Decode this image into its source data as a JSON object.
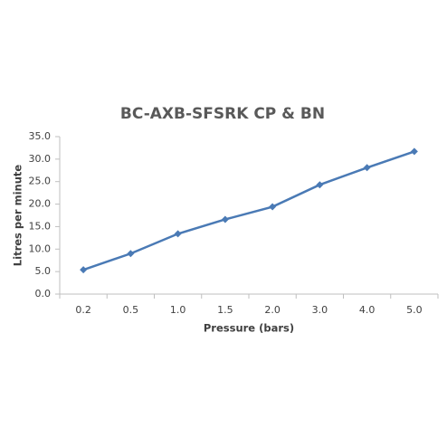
{
  "chart_data": {
    "type": "line",
    "title": "BC-AXB-SFSRK CP & BN",
    "x_label": "Pressure (bars)",
    "y_label": "Litres per minute",
    "categories": [
      "0.2",
      "0.5",
      "1.0",
      "1.5",
      "2.0",
      "3.0",
      "4.0",
      "5.0"
    ],
    "values": [
      5.4,
      9.0,
      13.4,
      16.6,
      19.4,
      24.3,
      28.1,
      31.7
    ],
    "color": "#4a7ab5",
    "marker": "diamond",
    "ylim": [
      0,
      35
    ],
    "yticks": [
      {
        "value": 0,
        "label": "0.0"
      },
      {
        "value": 5,
        "label": "5.0"
      },
      {
        "value": 10,
        "label": "10.0"
      },
      {
        "value": 15,
        "label": "15.0"
      },
      {
        "value": 20,
        "label": "20.0"
      },
      {
        "value": 25,
        "label": "25.0"
      },
      {
        "value": 30,
        "label": "30.0"
      },
      {
        "value": 35,
        "label": "35.0"
      }
    ],
    "grid": false
  }
}
